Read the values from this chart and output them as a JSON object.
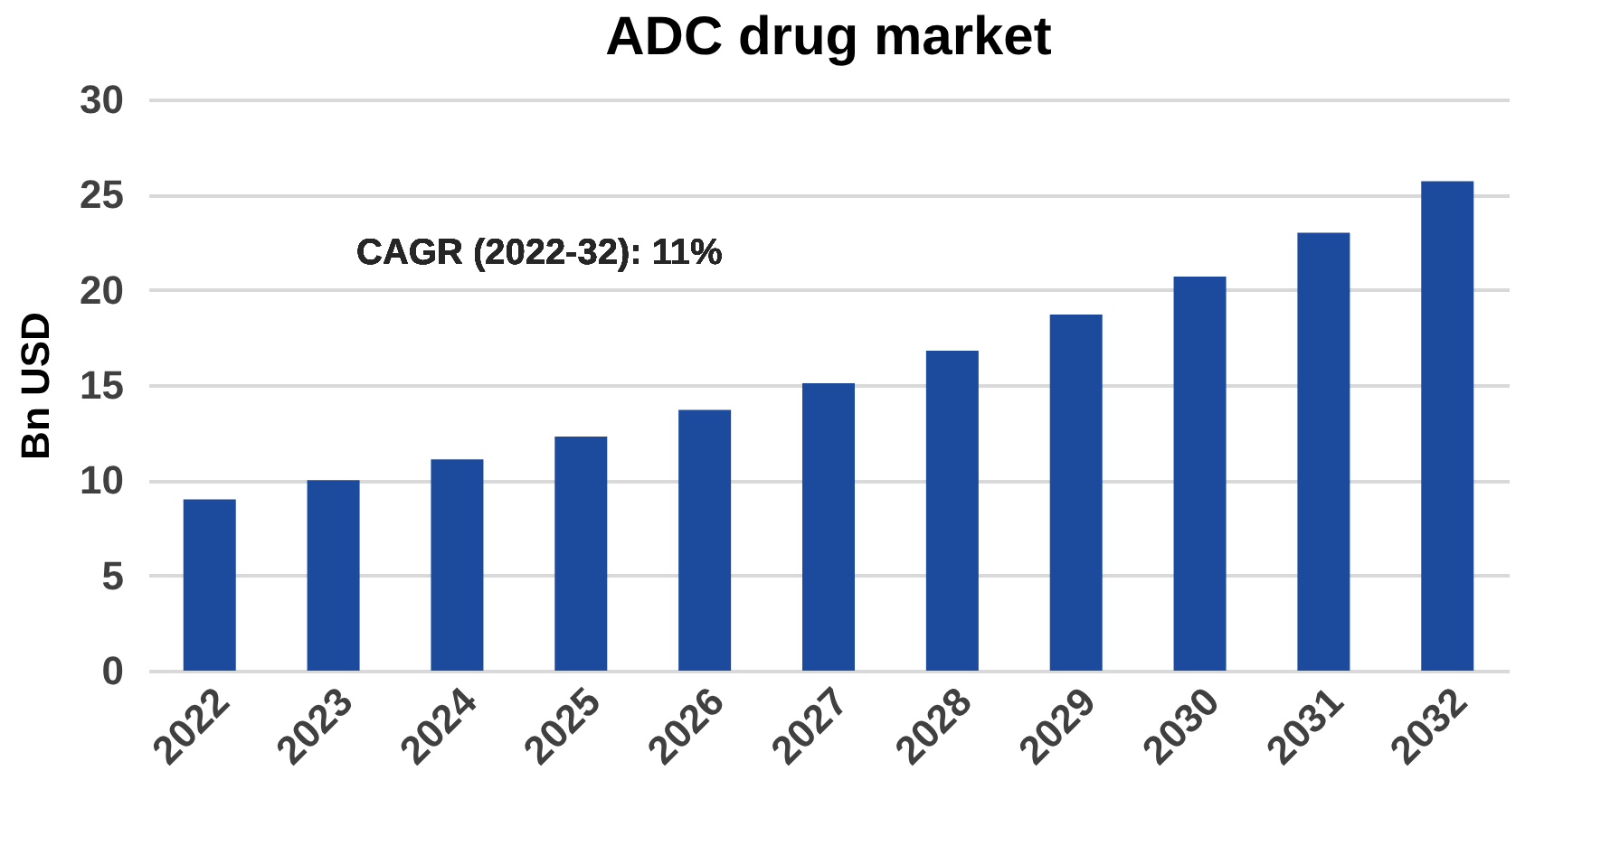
{
  "chart_data": {
    "type": "bar",
    "title": "ADC drug market",
    "ylabel": "Bn USD",
    "categories": [
      "2022",
      "2023",
      "2024",
      "2025",
      "2026",
      "2027",
      "2028",
      "2029",
      "2030",
      "2031",
      "2032"
    ],
    "values": [
      9.0,
      10.0,
      11.1,
      12.3,
      13.7,
      15.1,
      16.8,
      18.7,
      20.7,
      23.0,
      25.7
    ],
    "color": "#1c4a9c",
    "ylim": [
      0,
      30
    ],
    "yticks": [
      0,
      5,
      10,
      15,
      20,
      25,
      30
    ],
    "grid": "y",
    "annotations": [
      "CAGR (2022-32): 11%"
    ]
  }
}
